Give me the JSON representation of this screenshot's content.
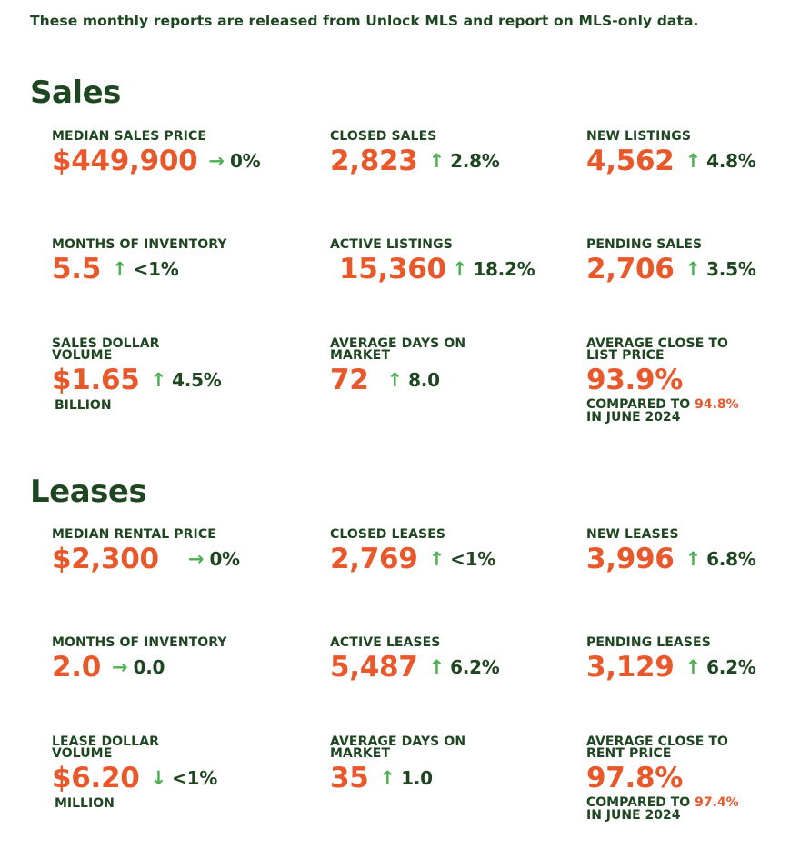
{
  "intro": "These monthly reports are released from Unlock MLS and report on MLS-only data.",
  "sales": {
    "title": "Sales",
    "median_price": {
      "label": "MEDIAN SALES PRICE",
      "value": "$449,900",
      "arrow": "→",
      "change": "0%"
    },
    "closed": {
      "label": "CLOSED SALES",
      "value": "2,823",
      "arrow": "↑",
      "change": "2.8%"
    },
    "new_listings": {
      "label": "NEW LISTINGS",
      "value": "4,562",
      "arrow": "↑",
      "change": "4.8%"
    },
    "months_inventory": {
      "label": "MONTHS OF INVENTORY",
      "value": "5.5",
      "arrow": "↑",
      "change": "<1%"
    },
    "active": {
      "label": "ACTIVE LISTINGS",
      "value": "15,360",
      "arrow": "↑",
      "change": "18.2%"
    },
    "pending": {
      "label": "PENDING SALES",
      "value": "2,706",
      "arrow": "↑",
      "change": "3.5%"
    },
    "dollar_volume": {
      "label": "SALES DOLLAR\nVOLUME",
      "value": "$1.65",
      "arrow": "↑",
      "change": "4.5%",
      "unit": "BILLION"
    },
    "days_on_market": {
      "label": "AVERAGE DAYS ON\nMARKET",
      "value": "72",
      "arrow": "↑",
      "change": "8.0"
    },
    "close_to_list": {
      "label": "AVERAGE CLOSE TO\nLIST PRICE",
      "value": "93.9%",
      "compare_prefix": "COMPARED TO",
      "compare_value": "94.8%",
      "compare_suffix": "IN JUNE 2024"
    }
  },
  "leases": {
    "title": "Leases",
    "median_price": {
      "label": "MEDIAN RENTAL PRICE",
      "value": "$2,300",
      "arrow": "→",
      "change": "0%"
    },
    "closed": {
      "label": "CLOSED LEASES",
      "value": "2,769",
      "arrow": "↑",
      "change": "<1%"
    },
    "new_leases": {
      "label": "NEW LEASES",
      "value": "3,996",
      "arrow": "↑",
      "change": "6.8%"
    },
    "months_inventory": {
      "label": "MONTHS OF INVENTORY",
      "value": "2.0",
      "arrow": "→",
      "change": "0.0"
    },
    "active": {
      "label": "ACTIVE LEASES",
      "value": "5,487",
      "arrow": "↑",
      "change": "6.2%"
    },
    "pending": {
      "label": "PENDING LEASES",
      "value": "3,129",
      "arrow": "↑",
      "change": "6.2%"
    },
    "dollar_volume": {
      "label": "LEASE DOLLAR\nVOLUME",
      "value": "$6.20",
      "arrow": "↓",
      "change": "<1%",
      "unit": "MILLION"
    },
    "days_on_market": {
      "label": "AVERAGE DAYS ON\nMARKET",
      "value": "35",
      "arrow": "↑",
      "change": "1.0"
    },
    "close_to_rent": {
      "label": "AVERAGE CLOSE TO\nRENT PRICE",
      "value": "97.8%",
      "compare_prefix": "COMPARED TO",
      "compare_value": "97.4%",
      "compare_suffix": "IN JUNE 2024"
    }
  },
  "colors": {
    "green": "#1e4620",
    "orange": "#e8582a",
    "arrow_green": "#4cb050"
  }
}
